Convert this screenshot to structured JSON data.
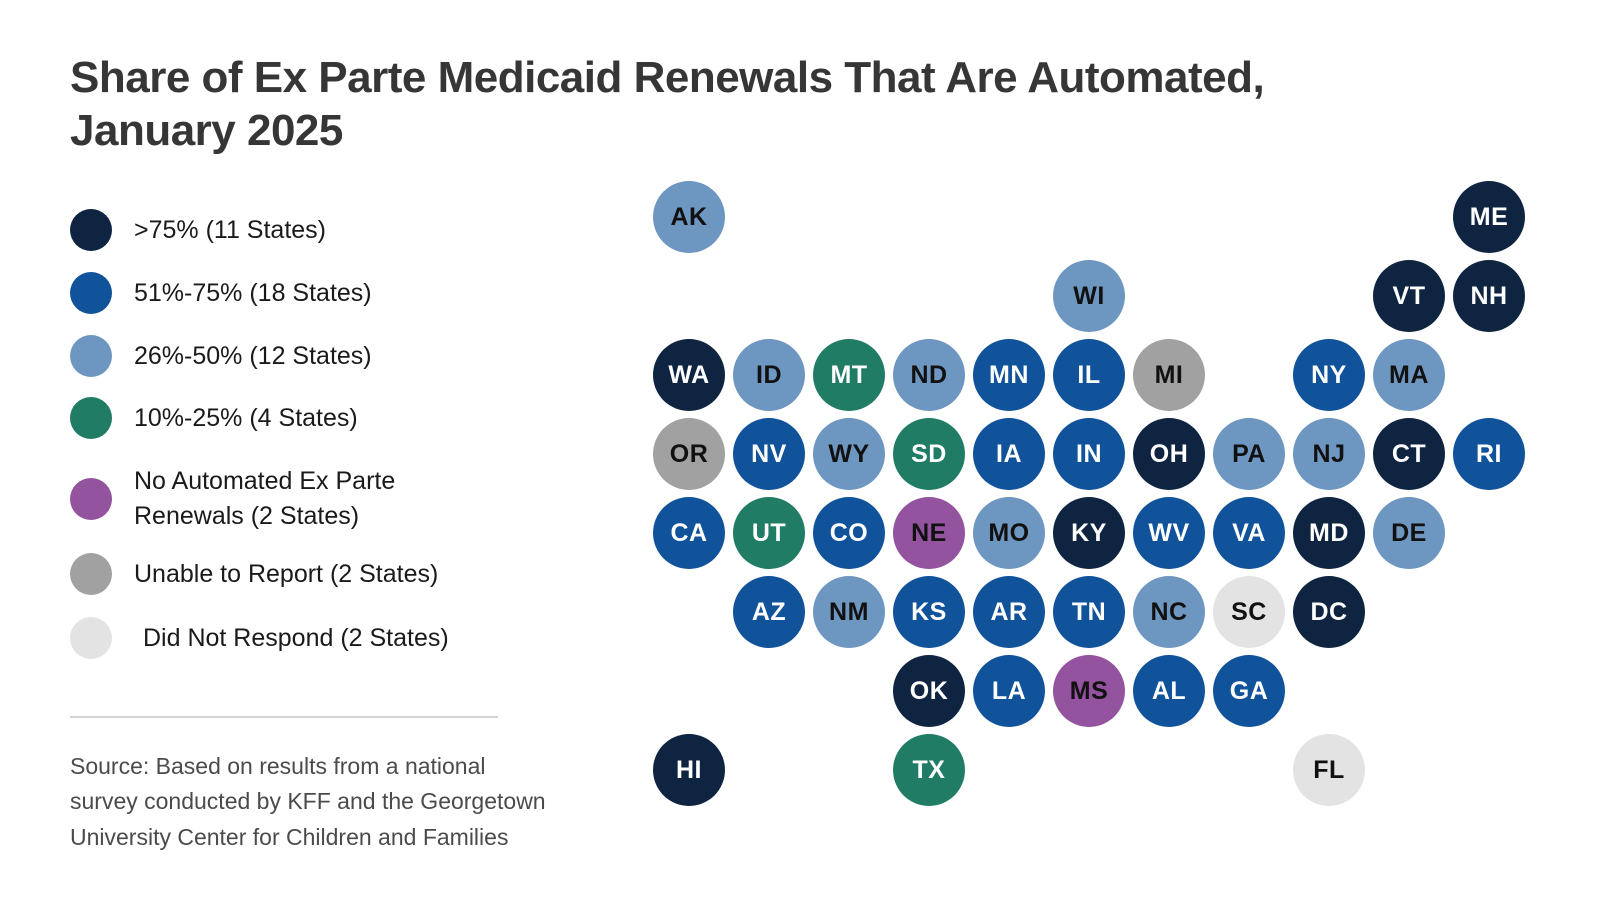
{
  "title": {
    "lines": [
      "Share of Ex Parte Medicaid Renewals That Are Automated,",
      "January 2025"
    ]
  },
  "source": {
    "lines": [
      "Source: Based on results from a national",
      "survey conducted by KFF and the Georgetown",
      "University Center for Children and Families"
    ]
  },
  "chart_data": {
    "type": "heatmap",
    "subtype": "us-state-tile-cartogram",
    "title": "Share of Ex Parte Medicaid Renewals That Are Automated, January 2025",
    "legend_position": "left",
    "legend": [
      {
        "key": "gt75",
        "label": ">75% (11 States)",
        "color": "#0e2440",
        "dark_text": false
      },
      {
        "key": "p51_75",
        "label": "51%-75% (18 States)",
        "color": "#11539b",
        "dark_text": false
      },
      {
        "key": "p26_50",
        "label": "26%-50% (12 States)",
        "color": "#6d97c1",
        "dark_text": true
      },
      {
        "key": "p10_25",
        "label": "10%-25% (4 States)",
        "color": "#217c66",
        "dark_text": false
      },
      {
        "key": "no_auto",
        "label": "No Automated Ex Parte Renewals (2 States)",
        "color": "#94539f",
        "dark_text": true
      },
      {
        "key": "unable",
        "label": "Unable to Report (2 States)",
        "color": "#a1a1a1",
        "dark_text": true
      },
      {
        "key": "did_not_respond",
        "label": "Did Not Respond (2 States)",
        "color": "#e3e3e3",
        "dark_text": true
      }
    ],
    "states": [
      {
        "code": "AK",
        "col": 1,
        "row": 1,
        "category": "p26_50"
      },
      {
        "code": "ME",
        "col": 11,
        "row": 1,
        "category": "gt75"
      },
      {
        "code": "WI",
        "col": 6,
        "row": 2,
        "category": "p26_50"
      },
      {
        "code": "VT",
        "col": 10,
        "row": 2,
        "category": "gt75"
      },
      {
        "code": "NH",
        "col": 11,
        "row": 2,
        "category": "gt75"
      },
      {
        "code": "WA",
        "col": 1,
        "row": 3,
        "category": "gt75"
      },
      {
        "code": "ID",
        "col": 2,
        "row": 3,
        "category": "p26_50"
      },
      {
        "code": "MT",
        "col": 3,
        "row": 3,
        "category": "p10_25"
      },
      {
        "code": "ND",
        "col": 4,
        "row": 3,
        "category": "p26_50"
      },
      {
        "code": "MN",
        "col": 5,
        "row": 3,
        "category": "p51_75"
      },
      {
        "code": "IL",
        "col": 6,
        "row": 3,
        "category": "p51_75"
      },
      {
        "code": "MI",
        "col": 7,
        "row": 3,
        "category": "unable"
      },
      {
        "code": "NY",
        "col": 9,
        "row": 3,
        "category": "p51_75"
      },
      {
        "code": "MA",
        "col": 10,
        "row": 3,
        "category": "p26_50"
      },
      {
        "code": "OR",
        "col": 1,
        "row": 4,
        "category": "unable"
      },
      {
        "code": "NV",
        "col": 2,
        "row": 4,
        "category": "p51_75"
      },
      {
        "code": "WY",
        "col": 3,
        "row": 4,
        "category": "p26_50"
      },
      {
        "code": "SD",
        "col": 4,
        "row": 4,
        "category": "p10_25"
      },
      {
        "code": "IA",
        "col": 5,
        "row": 4,
        "category": "p51_75"
      },
      {
        "code": "IN",
        "col": 6,
        "row": 4,
        "category": "p51_75"
      },
      {
        "code": "OH",
        "col": 7,
        "row": 4,
        "category": "gt75"
      },
      {
        "code": "PA",
        "col": 8,
        "row": 4,
        "category": "p26_50"
      },
      {
        "code": "NJ",
        "col": 9,
        "row": 4,
        "category": "p26_50"
      },
      {
        "code": "CT",
        "col": 10,
        "row": 4,
        "category": "gt75"
      },
      {
        "code": "RI",
        "col": 11,
        "row": 4,
        "category": "p51_75"
      },
      {
        "code": "CA",
        "col": 1,
        "row": 5,
        "category": "p51_75"
      },
      {
        "code": "UT",
        "col": 2,
        "row": 5,
        "category": "p10_25"
      },
      {
        "code": "CO",
        "col": 3,
        "row": 5,
        "category": "p51_75"
      },
      {
        "code": "NE",
        "col": 4,
        "row": 5,
        "category": "no_auto"
      },
      {
        "code": "MO",
        "col": 5,
        "row": 5,
        "category": "p26_50"
      },
      {
        "code": "KY",
        "col": 6,
        "row": 5,
        "category": "gt75"
      },
      {
        "code": "WV",
        "col": 7,
        "row": 5,
        "category": "p51_75"
      },
      {
        "code": "VA",
        "col": 8,
        "row": 5,
        "category": "p51_75"
      },
      {
        "code": "MD",
        "col": 9,
        "row": 5,
        "category": "gt75"
      },
      {
        "code": "DE",
        "col": 10,
        "row": 5,
        "category": "p26_50"
      },
      {
        "code": "AZ",
        "col": 2,
        "row": 6,
        "category": "p51_75"
      },
      {
        "code": "NM",
        "col": 3,
        "row": 6,
        "category": "p26_50"
      },
      {
        "code": "KS",
        "col": 4,
        "row": 6,
        "category": "p51_75"
      },
      {
        "code": "AR",
        "col": 5,
        "row": 6,
        "category": "p51_75"
      },
      {
        "code": "TN",
        "col": 6,
        "row": 6,
        "category": "p51_75"
      },
      {
        "code": "NC",
        "col": 7,
        "row": 6,
        "category": "p26_50"
      },
      {
        "code": "SC",
        "col": 8,
        "row": 6,
        "category": "did_not_respond"
      },
      {
        "code": "DC",
        "col": 9,
        "row": 6,
        "category": "gt75"
      },
      {
        "code": "OK",
        "col": 4,
        "row": 7,
        "category": "gt75"
      },
      {
        "code": "LA",
        "col": 5,
        "row": 7,
        "category": "p51_75"
      },
      {
        "code": "MS",
        "col": 6,
        "row": 7,
        "category": "no_auto"
      },
      {
        "code": "AL",
        "col": 7,
        "row": 7,
        "category": "p51_75"
      },
      {
        "code": "GA",
        "col": 8,
        "row": 7,
        "category": "p51_75"
      },
      {
        "code": "HI",
        "col": 1,
        "row": 8,
        "category": "gt75"
      },
      {
        "code": "TX",
        "col": 4,
        "row": 8,
        "category": "p10_25"
      },
      {
        "code": "FL",
        "col": 9,
        "row": 8,
        "category": "did_not_respond"
      }
    ]
  }
}
